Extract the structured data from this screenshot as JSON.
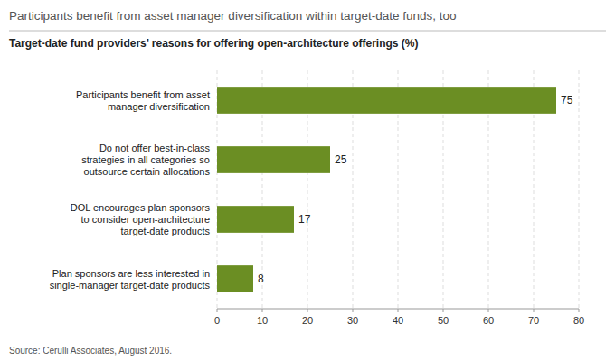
{
  "chart_data": {
    "type": "bar",
    "orientation": "horizontal",
    "title": "Participants benefit from asset manager diversification within target-date funds, too",
    "subtitle": "Target-date fund providers’ reasons for offering open-architecture offerings (%)",
    "source": "Source: Cerulli Associates, August 2016.",
    "categories": [
      "Plan sponsors are less interested in\nsingle-manager target-date products",
      "DOL encourages plan sponsors\nto consider open-architecture\ntarget-date products",
      "Do not offer best-in-class\nstrategies in all categories so\noutsource certain allocations",
      "Participants benefit from asset\nmanager diversification"
    ],
    "values": [
      8,
      17,
      25,
      75
    ],
    "color": "#6b8e23",
    "xlim": [
      0,
      80
    ],
    "xticks": [
      0,
      10,
      20,
      30,
      40,
      50,
      60,
      70,
      80
    ],
    "grid": true,
    "data_labels": true
  }
}
